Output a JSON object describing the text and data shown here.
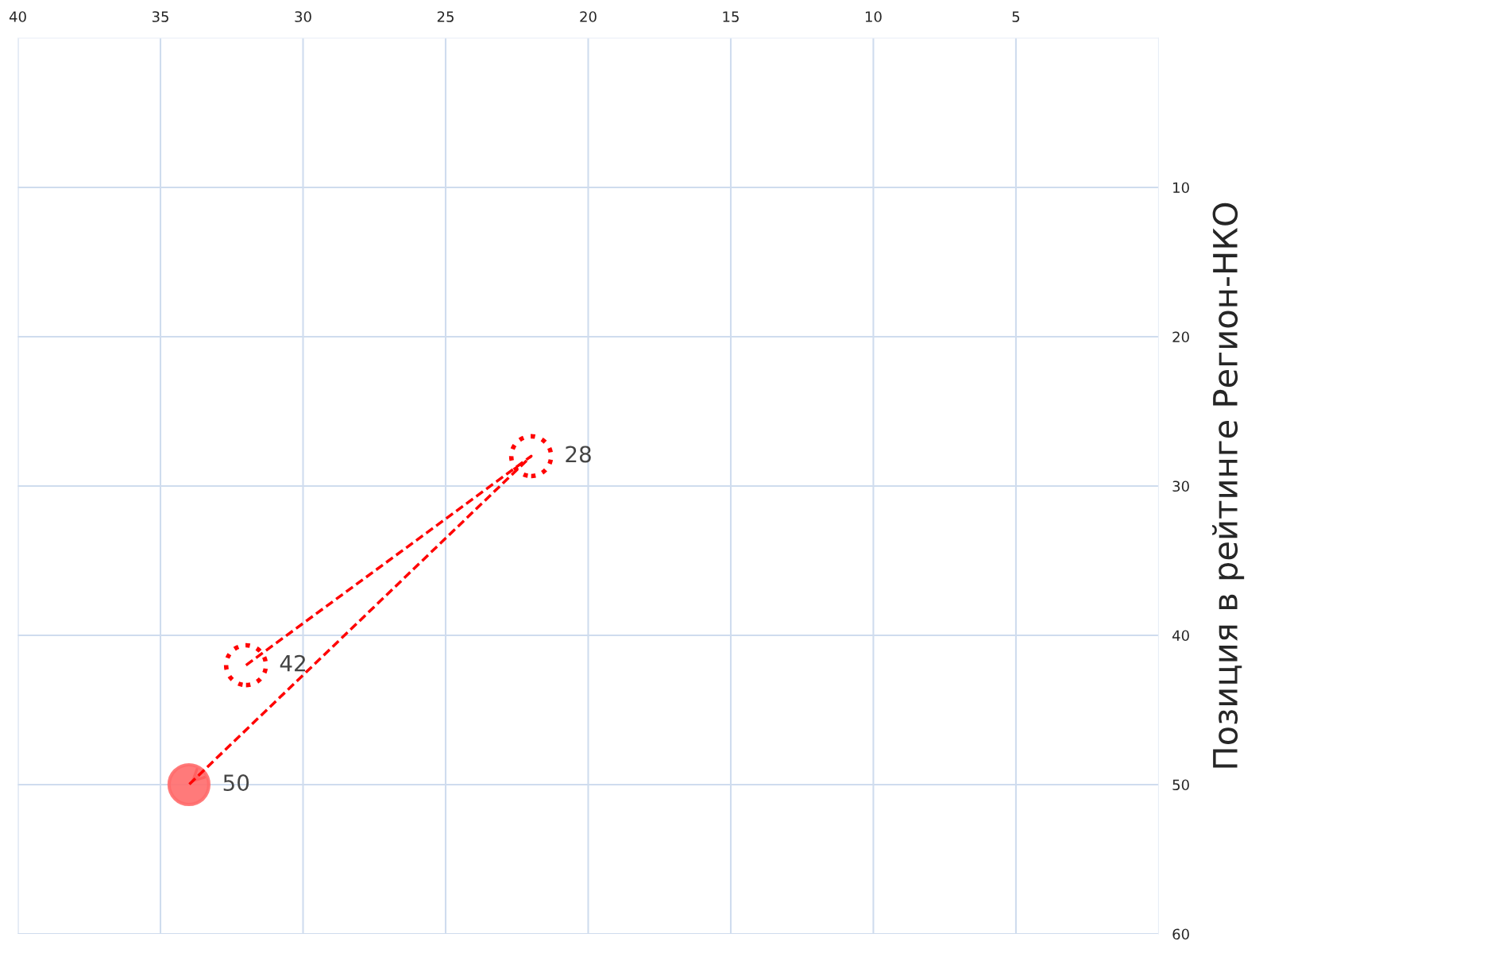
{
  "chart_data": {
    "type": "scatter",
    "ylabel": "Позиция в рейтинге Регион-НКО",
    "xlim": [
      40,
      0
    ],
    "ylim": [
      60,
      0
    ],
    "xticks": [
      40,
      35,
      30,
      25,
      20,
      15,
      10,
      5
    ],
    "yticks": [
      10,
      20,
      30,
      40,
      50,
      60
    ],
    "grid": true,
    "series": [
      {
        "type": "line",
        "x": [
          32,
          22,
          34
        ],
        "values": [
          42,
          28,
          50
        ],
        "color": "#ff0000",
        "line_style": "dashed",
        "marker": "none"
      },
      {
        "x": [
          32,
          22
        ],
        "values": [
          42,
          28
        ],
        "value_labels": [
          "42",
          "28"
        ],
        "color": "#ff0000",
        "line_style": "dotted",
        "marker": "circle"
      },
      {
        "x": [
          34
        ],
        "values": [
          50
        ],
        "value_labels": [
          "50"
        ],
        "color": "#ff6b6b",
        "marker": "circle"
      }
    ]
  }
}
